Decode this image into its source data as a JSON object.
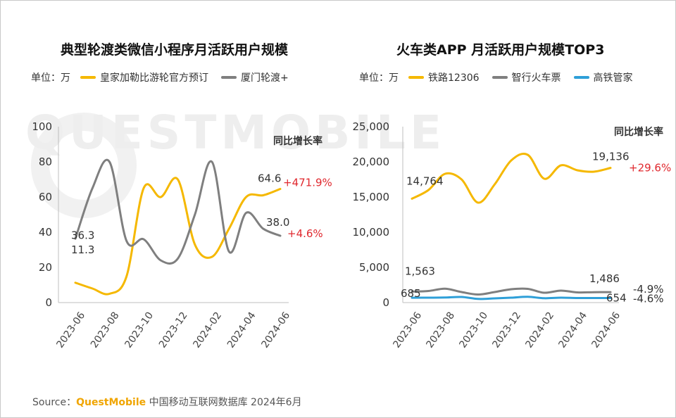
{
  "watermark": "QUESTMOBILE",
  "source": {
    "label": "Source：",
    "brand": "QuestMobile",
    "text": " 中国移动互联网数据库 2024年6月"
  },
  "chart_data": [
    {
      "type": "line",
      "title": "典型轮渡类微信小程序月活跃用户规模",
      "unit_label": "单位：万",
      "yoy_title": "同比增长率",
      "categories": [
        "2023-06",
        "2023-07",
        "2023-08",
        "2023-09",
        "2023-10",
        "2023-11",
        "2023-12",
        "2024-01",
        "2024-02",
        "2024-03",
        "2024-04",
        "2024-05",
        "2024-06"
      ],
      "xtick_labels": [
        "2023-06",
        "2023-08",
        "2023-10",
        "2023-12",
        "2024-02",
        "2024-04",
        "2024-06"
      ],
      "ylim": [
        0,
        100
      ],
      "yticks": [
        "0",
        "20",
        "40",
        "60",
        "80",
        "100"
      ],
      "series": [
        {
          "name": "皇家加勒比游轮官方预订",
          "color": "#f5b800",
          "values": [
            11.3,
            8,
            5,
            15,
            65,
            60,
            70,
            33,
            26,
            42,
            60,
            61,
            64.6
          ],
          "start_label": "11.3",
          "end_label": "64.6",
          "yoy": "+471.9%",
          "yoy_color": "#e0282e"
        },
        {
          "name": "厦门轮渡+",
          "color": "#7f7f7f",
          "values": [
            36.3,
            65,
            80,
            35,
            36,
            24,
            25,
            50,
            80,
            29,
            51,
            42,
            38.0
          ],
          "start_label": "36.3",
          "end_label": "38.0",
          "yoy": "+4.6%",
          "yoy_color": "#e0282e"
        }
      ]
    },
    {
      "type": "line",
      "title": "火车类APP 月活跃用户规模TOP3",
      "unit_label": "单位：万",
      "yoy_title": "同比增长率",
      "categories": [
        "2023-06",
        "2023-07",
        "2023-08",
        "2023-09",
        "2023-10",
        "2023-11",
        "2023-12",
        "2024-01",
        "2024-02",
        "2024-03",
        "2024-04",
        "2024-05",
        "2024-06"
      ],
      "xtick_labels": [
        "2023-06",
        "2023-08",
        "2023-10",
        "2023-12",
        "2024-02",
        "2024-04",
        "2024-06"
      ],
      "ylim": [
        0,
        25000
      ],
      "yticks": [
        "0",
        "5,000",
        "10,000",
        "15,000",
        "20,000",
        "25,000"
      ],
      "series": [
        {
          "name": "铁路12306",
          "color": "#f5b800",
          "values": [
            14764,
            16000,
            18300,
            17500,
            14200,
            16800,
            20200,
            21000,
            17600,
            19500,
            18800,
            18600,
            19136
          ],
          "start_label": "14,764",
          "end_label": "19,136",
          "yoy": "+29.6%",
          "yoy_color": "#e0282e"
        },
        {
          "name": "智行火车票",
          "color": "#7f7f7f",
          "values": [
            1563,
            1650,
            1980,
            1500,
            1150,
            1500,
            1900,
            1950,
            1400,
            1700,
            1450,
            1480,
            1486
          ],
          "start_label": "1,563",
          "end_label": "1,486",
          "yoy": "-4.9%",
          "yoy_color": "#333333"
        },
        {
          "name": "高铁管家",
          "color": "#2e9fd8",
          "values": [
            685,
            700,
            720,
            800,
            520,
            600,
            700,
            820,
            620,
            700,
            650,
            650,
            654
          ],
          "start_label": "685",
          "end_label": "654",
          "yoy": "-4.6%",
          "yoy_color": "#333333"
        }
      ]
    }
  ]
}
